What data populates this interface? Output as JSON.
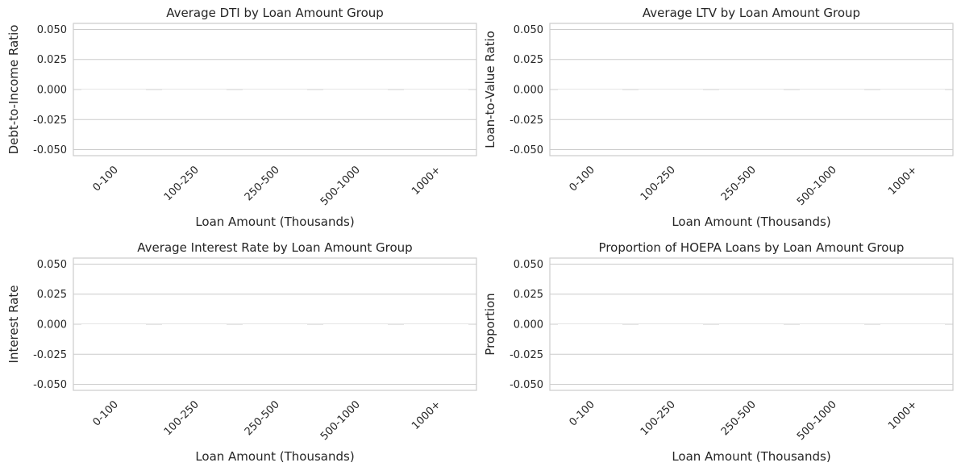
{
  "chart_data": [
    {
      "type": "bar",
      "title": "Average DTI by Loan Amount Group",
      "xlabel": "Loan Amount (Thousands)",
      "ylabel": "Debt-to-Income Ratio",
      "categories": [
        "0-100",
        "100-250",
        "250-500",
        "500-1000",
        "1000+"
      ],
      "values": [
        0,
        0,
        0,
        0,
        0
      ],
      "ylim": [
        -0.055,
        0.055
      ],
      "yticks": [
        "0.050",
        "0.025",
        "0.000",
        "-0.025",
        "-0.050"
      ],
      "ytick_values": [
        0.05,
        0.025,
        0,
        -0.025,
        -0.05
      ],
      "grid": true
    },
    {
      "type": "bar",
      "title": "Average LTV by Loan Amount Group",
      "xlabel": "Loan Amount (Thousands)",
      "ylabel": "Loan-to-Value Ratio",
      "categories": [
        "0-100",
        "100-250",
        "250-500",
        "500-1000",
        "1000+"
      ],
      "values": [
        0,
        0,
        0,
        0,
        0
      ],
      "ylim": [
        -0.055,
        0.055
      ],
      "yticks": [
        "0.050",
        "0.025",
        "0.000",
        "-0.025",
        "-0.050"
      ],
      "ytick_values": [
        0.05,
        0.025,
        0,
        -0.025,
        -0.05
      ],
      "grid": true
    },
    {
      "type": "bar",
      "title": "Average Interest Rate by Loan Amount Group",
      "xlabel": "Loan Amount (Thousands)",
      "ylabel": "Interest Rate",
      "categories": [
        "0-100",
        "100-250",
        "250-500",
        "500-1000",
        "1000+"
      ],
      "values": [
        0,
        0,
        0,
        0,
        0
      ],
      "ylim": [
        -0.055,
        0.055
      ],
      "yticks": [
        "0.050",
        "0.025",
        "0.000",
        "-0.025",
        "-0.050"
      ],
      "ytick_values": [
        0.05,
        0.025,
        0,
        -0.025,
        -0.05
      ],
      "grid": true
    },
    {
      "type": "bar",
      "title": "Proportion of HOEPA Loans by Loan Amount Group",
      "xlabel": "Loan Amount (Thousands)",
      "ylabel": "Proportion",
      "categories": [
        "0-100",
        "100-250",
        "250-500",
        "500-1000",
        "1000+"
      ],
      "values": [
        0,
        0,
        0,
        0,
        0
      ],
      "ylim": [
        -0.055,
        0.055
      ],
      "yticks": [
        "0.050",
        "0.025",
        "0.000",
        "-0.025",
        "-0.050"
      ],
      "ytick_values": [
        0.05,
        0.025,
        0,
        -0.025,
        -0.05
      ],
      "grid": true
    }
  ],
  "colors": {
    "grid": "#cccccc",
    "frame": "#cccccc",
    "text": "#262626",
    "background": "#ffffff"
  }
}
